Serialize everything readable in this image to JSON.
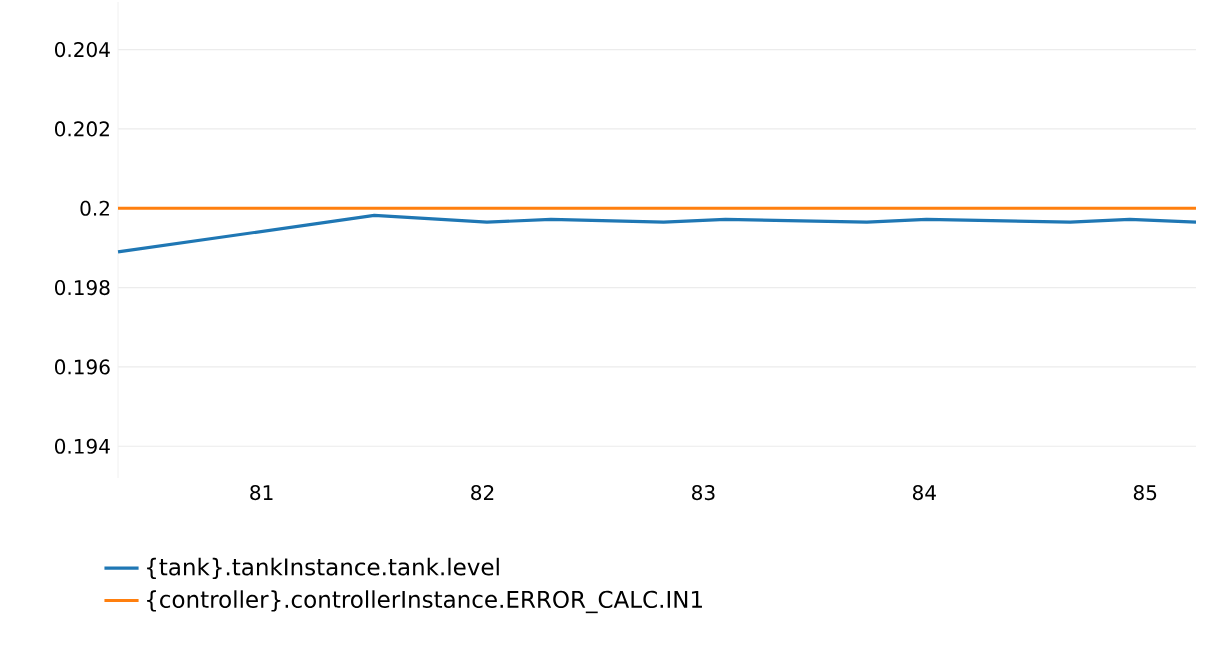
{
  "chart_data": {
    "type": "line",
    "xlim": [
      80.35,
      85.23
    ],
    "xticks": [
      81,
      82,
      83,
      84,
      85
    ],
    "ylim": [
      0.1932,
      0.2052
    ],
    "yticks": [
      0.194,
      0.196,
      0.198,
      0.2,
      0.202,
      0.204
    ],
    "grid": "y",
    "legend": "bottom",
    "series": [
      {
        "name": "{tank}.tankInstance.tank.level",
        "color": "#1f77b4",
        "x": [
          80.35,
          81.51,
          82.02,
          82.31,
          82.82,
          83.1,
          83.74,
          84.01,
          84.66,
          84.93,
          85.23
        ],
        "values": [
          0.1989,
          0.19982,
          0.19965,
          0.19972,
          0.19965,
          0.19972,
          0.19965,
          0.19972,
          0.19965,
          0.19972,
          0.19965
        ]
      },
      {
        "name": "{controller}.controllerInstance.ERROR_CALC.IN1",
        "color": "#ff7f0e",
        "x": [
          80.35,
          85.23
        ],
        "values": [
          0.2,
          0.2
        ]
      }
    ]
  }
}
